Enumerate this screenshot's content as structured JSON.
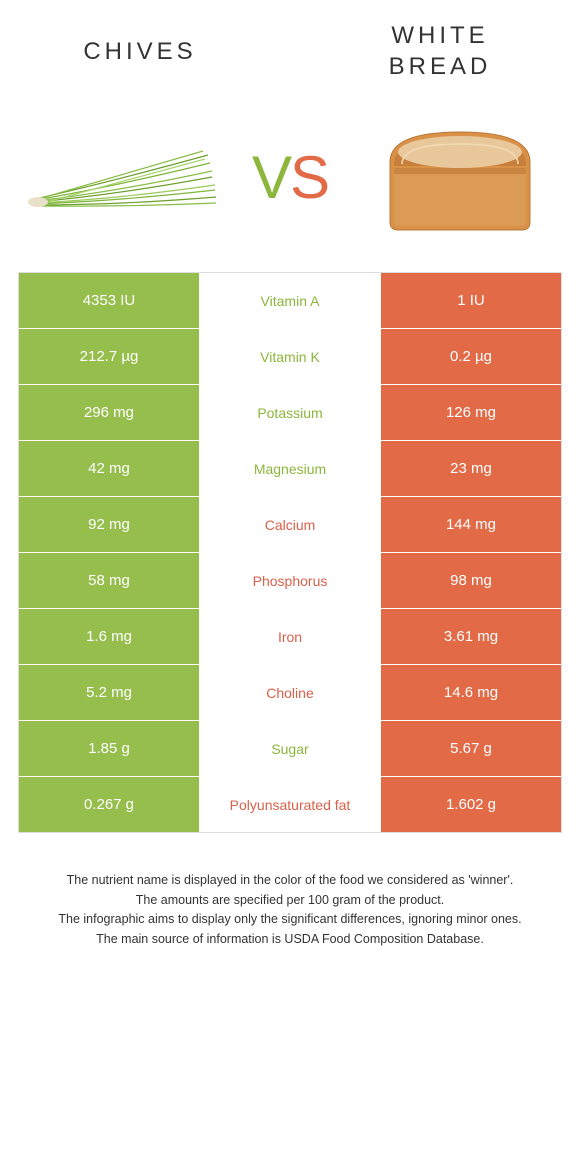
{
  "colors": {
    "left_bg": "#95be4c",
    "right_bg": "#e26a47",
    "left_text": "#8cb63c",
    "right_text": "#d9604a",
    "border": "#dddddd",
    "white": "#ffffff",
    "body_text": "#333333"
  },
  "header": {
    "left_title": "CHIVES",
    "right_title": "WHITE BREAD"
  },
  "vs": {
    "v": "V",
    "s": "S"
  },
  "rows": [
    {
      "left": "4353 IU",
      "label": "Vitamin A",
      "right": "1 IU",
      "winner": "left"
    },
    {
      "left": "212.7 µg",
      "label": "Vitamin K",
      "right": "0.2 µg",
      "winner": "left"
    },
    {
      "left": "296 mg",
      "label": "Potassium",
      "right": "126 mg",
      "winner": "left"
    },
    {
      "left": "42 mg",
      "label": "Magnesium",
      "right": "23 mg",
      "winner": "left"
    },
    {
      "left": "92 mg",
      "label": "Calcium",
      "right": "144 mg",
      "winner": "right"
    },
    {
      "left": "58 mg",
      "label": "Phosphorus",
      "right": "98 mg",
      "winner": "right"
    },
    {
      "left": "1.6 mg",
      "label": "Iron",
      "right": "3.61 mg",
      "winner": "right"
    },
    {
      "left": "5.2 mg",
      "label": "Choline",
      "right": "14.6 mg",
      "winner": "right"
    },
    {
      "left": "1.85 g",
      "label": "Sugar",
      "right": "5.67 g",
      "winner": "left"
    },
    {
      "left": "0.267 g",
      "label": "Polyunsaturated fat",
      "right": "1.602 g",
      "winner": "right"
    }
  ],
  "footer": {
    "line1": "The nutrient name is displayed in the color of the food we considered as 'winner'.",
    "line2": "The amounts are specified per 100 gram of the product.",
    "line3": "The infographic aims to display only the significant differences, ignoring minor ones.",
    "line4": "The main source of information is USDA Food Composition Database."
  }
}
